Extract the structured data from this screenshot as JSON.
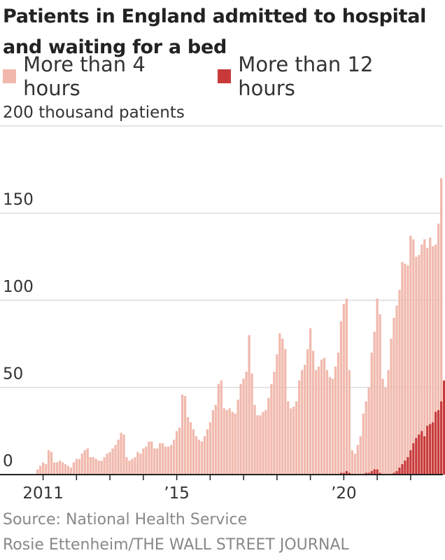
{
  "chart_data": {
    "type": "bar",
    "title": "Patients in England admitted to hospital and waiting for a bed",
    "ylabel": "thousand patients",
    "y_ticks": [
      {
        "value": 0,
        "label": "0"
      },
      {
        "value": 50,
        "label": "50"
      },
      {
        "value": 100,
        "label": "100"
      },
      {
        "value": 150,
        "label": "150"
      },
      {
        "value": 200,
        "label": "200 thousand patients"
      }
    ],
    "ylim": [
      0,
      200
    ],
    "x_tick_labels": [
      {
        "month_index": 0,
        "label": "2011"
      },
      {
        "month_index": 48,
        "label": "’15"
      },
      {
        "month_index": 108,
        "label": "’20"
      }
    ],
    "x_start": "2010-11",
    "x_frequency": "monthly",
    "grid": true,
    "series": [
      {
        "name": "More than 4 hours",
        "color": "#f1b9ad",
        "values": [
          3,
          5,
          7,
          6,
          14,
          13,
          7,
          7,
          8,
          7,
          6,
          5,
          4,
          7,
          9,
          9,
          12,
          14,
          15,
          10,
          10,
          9,
          8,
          8,
          10,
          12,
          13,
          15,
          17,
          20,
          24,
          23,
          10,
          8,
          9,
          10,
          13,
          12,
          15,
          16,
          19,
          19,
          15,
          15,
          18,
          18,
          16,
          16,
          17,
          20,
          25,
          27,
          46,
          45,
          33,
          30,
          26,
          22,
          20,
          19,
          22,
          26,
          30,
          37,
          40,
          52,
          54,
          38,
          37,
          38,
          36,
          35,
          43,
          52,
          55,
          59,
          80,
          58,
          40,
          34,
          34,
          36,
          37,
          44,
          52,
          59,
          69,
          81,
          78,
          72,
          42,
          38,
          39,
          42,
          54,
          60,
          63,
          72,
          84,
          71,
          60,
          62,
          66,
          67,
          60,
          56,
          55,
          62,
          70,
          88,
          98,
          101,
          60,
          14,
          12,
          17,
          22,
          35,
          42,
          50,
          70,
          82,
          101,
          92,
          55,
          50,
          60,
          78,
          90,
          97,
          106,
          122,
          121,
          120,
          137,
          135,
          125,
          126,
          132,
          135,
          130,
          136,
          131,
          132,
          144,
          166
        ],
        "highlight_tail": 170
      },
      {
        "name": "More than 12 hours",
        "color": "#c83a3a",
        "values": [
          0,
          0,
          0,
          0,
          0,
          0,
          0,
          0,
          0,
          0,
          0,
          0,
          0,
          0,
          0,
          0,
          0,
          0,
          0,
          0,
          0,
          0,
          0,
          0,
          0,
          0,
          0,
          0,
          0,
          0,
          0,
          0,
          0,
          0,
          0,
          0,
          0,
          0,
          0,
          0,
          0,
          0,
          0,
          0,
          0,
          0,
          0,
          0,
          0,
          0,
          0,
          0,
          0,
          0,
          0,
          0,
          0,
          0,
          0,
          0,
          0,
          0,
          0,
          0,
          0,
          0,
          0,
          0,
          0,
          0,
          0,
          0,
          0,
          0,
          0,
          0,
          0,
          0,
          0,
          0,
          0,
          0,
          0,
          0,
          0,
          0,
          0,
          0,
          0,
          0,
          0,
          0,
          0,
          0,
          0,
          0,
          0,
          0,
          0,
          0,
          0,
          0,
          0,
          0,
          0,
          0,
          0,
          0,
          0,
          1,
          1,
          2,
          1,
          0,
          0,
          0,
          0,
          0,
          1,
          1,
          2,
          3,
          3,
          1,
          0,
          0,
          0,
          0,
          1,
          2,
          4,
          6,
          8,
          10,
          14,
          18,
          21,
          23,
          25,
          22,
          28,
          29,
          30,
          36,
          37,
          42,
          54
        ]
      }
    ]
  },
  "legend": {
    "item1": "More than 4 hours",
    "item2": "More than 12 hours"
  },
  "colors": {
    "light": "#f1b9ad",
    "dark": "#c83a3a",
    "grid": "#dcdcdc",
    "axis": "#222222"
  },
  "footer": {
    "source": "Source:  National Health Service",
    "credit": "Rosie Ettenheim/THE WALL STREET JOURNAL"
  }
}
